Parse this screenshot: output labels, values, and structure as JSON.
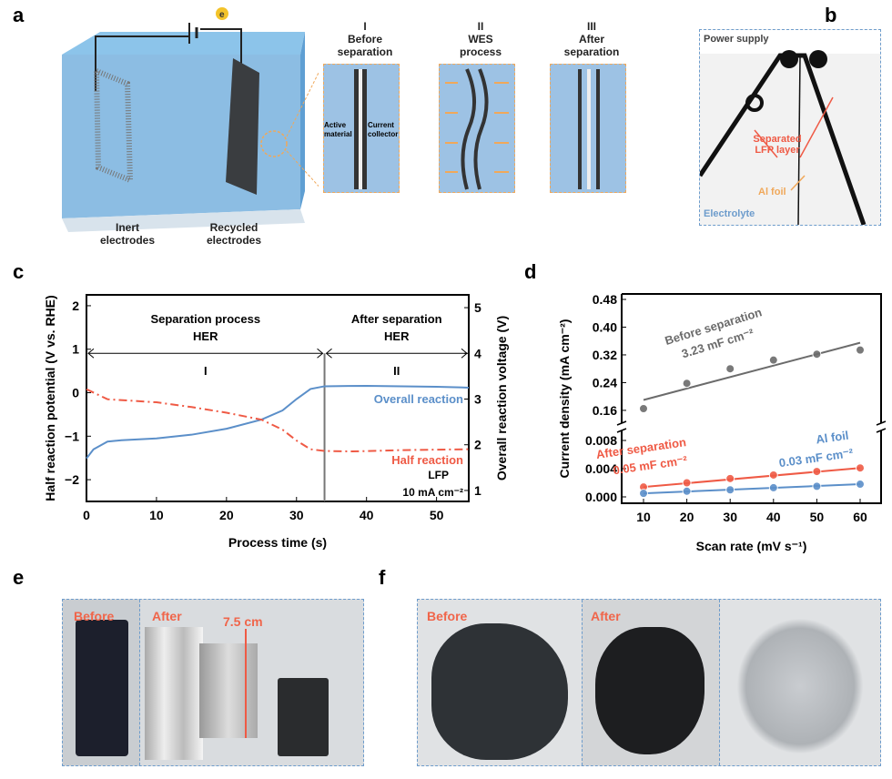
{
  "panels": {
    "a": "a",
    "b": "b",
    "c": "c",
    "d": "d",
    "e": "e",
    "f": "f"
  },
  "panel_a": {
    "electron": "e",
    "inert": "Inert\nelectrodes",
    "recycled": "Recycled\nelectrodes",
    "stages": [
      {
        "num": "I",
        "title": "Before\nseparation"
      },
      {
        "num": "II",
        "title": "WES\nprocess"
      },
      {
        "num": "III",
        "title": "After\nseparation"
      }
    ],
    "active_material": "Active\nmaterial",
    "current_collector": "Current\ncollector",
    "colors": {
      "water": "#7fb6e0",
      "inset": "#9dc2e4",
      "highlight": "#f0a85a"
    }
  },
  "panel_b": {
    "power_supply": "Power supply",
    "separated": "Separated\nLFP layer",
    "al_foil": "Al foil",
    "electrolyte": "Electrolyte"
  },
  "panel_e": {
    "before": "Before",
    "after": "After",
    "length": "7.5 cm"
  },
  "panel_f": {
    "before": "Before",
    "after": "After"
  },
  "chart_data": [
    {
      "type": "line",
      "panel": "c",
      "xlabel": "Process time (s)",
      "ylabel": "Half reaction potential (V vs. RHE)",
      "y2label": "Overall reaction voltage (V)",
      "xlim": [
        0,
        54.6
      ],
      "ylim": [
        -2.5,
        2.25
      ],
      "y2lim": [
        0.76,
        5.28
      ],
      "xticks": [
        0,
        10,
        20,
        30,
        40,
        50
      ],
      "yticks": [
        -2,
        -1,
        0,
        1,
        2
      ],
      "y2ticks": [
        1,
        2,
        3,
        4,
        5
      ],
      "divider_x": 34,
      "regions": [
        {
          "title": "Separation process",
          "sub": "HER",
          "num": "I"
        },
        {
          "title": "After separation",
          "sub": "HER",
          "num": "II"
        }
      ],
      "annotations": [
        "LFP",
        "10 mA cm⁻²"
      ],
      "series": [
        {
          "name": "Overall reaction",
          "axis": "right",
          "color": "#5b8fc9",
          "style": "solid",
          "x": [
            0,
            1,
            3,
            5,
            10,
            15,
            20,
            25,
            28,
            30,
            32,
            34,
            40,
            50,
            54.6
          ],
          "y": [
            1.7,
            1.9,
            2.07,
            2.1,
            2.14,
            2.22,
            2.35,
            2.55,
            2.75,
            3.0,
            3.22,
            3.28,
            3.29,
            3.27,
            3.25
          ]
        },
        {
          "name": "Half reaction",
          "axis": "left",
          "color": "#ef5a45",
          "style": "dashdot",
          "x": [
            0,
            3,
            10,
            15,
            20,
            25,
            28,
            30,
            32,
            34,
            38,
            45,
            54.6
          ],
          "y": [
            0.08,
            -0.15,
            -0.22,
            -0.33,
            -0.46,
            -0.62,
            -0.85,
            -1.1,
            -1.3,
            -1.34,
            -1.35,
            -1.32,
            -1.3
          ]
        }
      ]
    },
    {
      "type": "scatter",
      "panel": "d",
      "xlabel": "Scan rate (mV s⁻¹)",
      "ylabel": "Current density (mA cm⁻²)",
      "x": [
        10,
        20,
        30,
        40,
        50,
        60
      ],
      "xticks": [
        10,
        20,
        30,
        40,
        50,
        60
      ],
      "upper_yticks": [
        "0.16",
        "0.24",
        "0.32",
        "0.40",
        "0.48"
      ],
      "lower_yticks": [
        "0.000",
        "0.004",
        "0.008"
      ],
      "broken_axis": true,
      "series": [
        {
          "name": "Before separation",
          "value": "3.23 mF cm⁻²",
          "color": "#6b6b6b",
          "segment": "upper",
          "y": [
            0.165,
            0.238,
            0.28,
            0.305,
            0.322,
            0.334
          ],
          "fit": [
            0.19,
            0.355
          ]
        },
        {
          "name": "After separation",
          "value": "0.05 mF cm⁻²",
          "color": "#ef5a45",
          "segment": "lower",
          "y": [
            0.0014,
            0.002,
            0.0026,
            0.0031,
            0.0036,
            0.0041
          ],
          "fit": [
            0.0014,
            0.0041
          ]
        },
        {
          "name": "Al foil",
          "value": "0.03 mF cm⁻²",
          "color": "#5b8fc9",
          "segment": "lower",
          "y": [
            0.0005,
            0.0008,
            0.001,
            0.0013,
            0.0015,
            0.0018
          ],
          "fit": [
            0.0005,
            0.0018
          ]
        }
      ]
    }
  ]
}
